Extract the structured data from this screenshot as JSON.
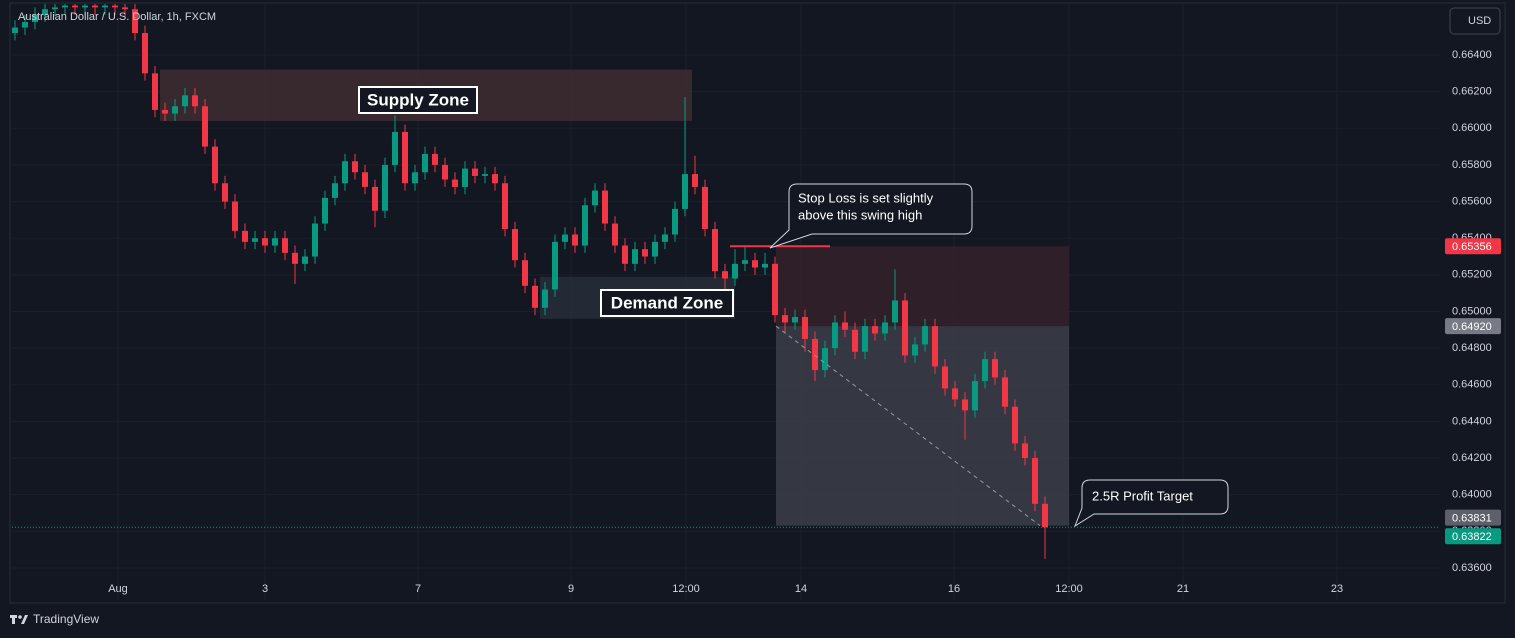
{
  "chart_data": {
    "type": "candlestick",
    "title": "Australian Dollar / U.S. Dollar, 1h, FXCM",
    "currency": "USD",
    "brand": "TradingView",
    "up_color": "#089981",
    "down_color": "#f23645",
    "grid": true,
    "open": [
      0.6652,
      0.6655,
      0.6658,
      0.6662,
      0.6665,
      0.6666,
      0.6667,
      0.6666,
      0.6667,
      0.6666,
      0.6667,
      0.6666,
      0.6665,
      0.6652,
      0.663,
      0.661,
      0.6608,
      0.6612,
      0.6618,
      0.6612,
      0.659,
      0.657,
      0.656,
      0.6544,
      0.6538,
      0.654,
      0.6536,
      0.654,
      0.6532,
      0.6526,
      0.653,
      0.6548,
      0.6562,
      0.657,
      0.6582,
      0.6576,
      0.6568,
      0.6555,
      0.658,
      0.6598,
      0.657,
      0.6576,
      0.6586,
      0.658,
      0.6572,
      0.6568,
      0.6578,
      0.6574,
      0.6575,
      0.657,
      0.6545,
      0.6528,
      0.6514,
      0.6502,
      0.6512,
      0.6538,
      0.6542,
      0.6536,
      0.6558,
      0.6566,
      0.6548,
      0.6536,
      0.6526,
      0.6534,
      0.653,
      0.6538,
      0.6542,
      0.6556,
      0.6575,
      0.6568,
      0.6545,
      0.6522,
      0.6518,
      0.6526,
      0.6528,
      0.6524,
      0.6526,
      0.6498,
      0.6494,
      0.6497,
      0.6485,
      0.6468,
      0.648,
      0.6494,
      0.649,
      0.6478,
      0.6492,
      0.6488,
      0.6494,
      0.6506,
      0.6476,
      0.6482,
      0.6492,
      0.647,
      0.6458,
      0.6452,
      0.6446,
      0.6462,
      0.6474,
      0.6464,
      0.6448,
      0.6428,
      0.642,
      0.6395
    ],
    "high": [
      0.6659,
      0.6662,
      0.6666,
      0.6669,
      0.667,
      0.6671,
      0.6671,
      0.6671,
      0.6671,
      0.6671,
      0.6671,
      0.667,
      0.6669,
      0.6656,
      0.6634,
      0.6614,
      0.6616,
      0.6622,
      0.6622,
      0.6616,
      0.6594,
      0.6574,
      0.6564,
      0.6548,
      0.6544,
      0.6544,
      0.6544,
      0.6544,
      0.6536,
      0.6534,
      0.6552,
      0.6566,
      0.6574,
      0.6586,
      0.6586,
      0.658,
      0.6572,
      0.6584,
      0.6607,
      0.6602,
      0.658,
      0.659,
      0.659,
      0.6584,
      0.6576,
      0.6582,
      0.6582,
      0.6579,
      0.6579,
      0.6574,
      0.6549,
      0.6532,
      0.6518,
      0.6516,
      0.6542,
      0.6546,
      0.6546,
      0.6562,
      0.657,
      0.657,
      0.6552,
      0.654,
      0.6538,
      0.6538,
      0.6542,
      0.6546,
      0.656,
      0.6617,
      0.6585,
      0.6572,
      0.6549,
      0.6526,
      0.6534,
      0.6535,
      0.6532,
      0.6532,
      0.653,
      0.6502,
      0.6501,
      0.6501,
      0.6489,
      0.6484,
      0.6498,
      0.65,
      0.6494,
      0.6496,
      0.6496,
      0.6498,
      0.6523,
      0.651,
      0.6486,
      0.6496,
      0.6496,
      0.6474,
      0.6462,
      0.6456,
      0.6466,
      0.6478,
      0.6478,
      0.6468,
      0.6452,
      0.6432,
      0.6424,
      0.6399
    ],
    "low": [
      0.6648,
      0.6651,
      0.6654,
      0.6658,
      0.6661,
      0.6662,
      0.6662,
      0.6662,
      0.6662,
      0.6662,
      0.6662,
      0.6661,
      0.6648,
      0.6626,
      0.6606,
      0.6604,
      0.6604,
      0.6608,
      0.6608,
      0.6586,
      0.6566,
      0.6556,
      0.654,
      0.6534,
      0.6534,
      0.6532,
      0.6532,
      0.6528,
      0.6515,
      0.6522,
      0.6526,
      0.6544,
      0.6558,
      0.6566,
      0.6572,
      0.6564,
      0.6546,
      0.6551,
      0.6576,
      0.6566,
      0.6566,
      0.6572,
      0.6576,
      0.6568,
      0.6564,
      0.6564,
      0.657,
      0.657,
      0.6566,
      0.6541,
      0.6524,
      0.651,
      0.6498,
      0.6498,
      0.6508,
      0.6534,
      0.6532,
      0.6532,
      0.6554,
      0.6544,
      0.6532,
      0.6522,
      0.6522,
      0.6526,
      0.6526,
      0.6534,
      0.6538,
      0.6552,
      0.6564,
      0.6541,
      0.6518,
      0.6512,
      0.6514,
      0.6522,
      0.652,
      0.652,
      0.6494,
      0.6488,
      0.649,
      0.6478,
      0.6462,
      0.6464,
      0.6476,
      0.6486,
      0.6474,
      0.6474,
      0.6484,
      0.6484,
      0.649,
      0.6472,
      0.6472,
      0.6478,
      0.6466,
      0.6454,
      0.6448,
      0.643,
      0.6442,
      0.6458,
      0.646,
      0.6444,
      0.6424,
      0.6416,
      0.6391,
      0.6365
    ],
    "close": [
      0.6655,
      0.6658,
      0.6662,
      0.6665,
      0.6666,
      0.6667,
      0.6666,
      0.6667,
      0.6666,
      0.6667,
      0.6666,
      0.6665,
      0.6652,
      0.663,
      0.661,
      0.6608,
      0.6612,
      0.6618,
      0.6612,
      0.659,
      0.657,
      0.656,
      0.6544,
      0.6538,
      0.654,
      0.6536,
      0.654,
      0.6532,
      0.6526,
      0.653,
      0.6548,
      0.6562,
      0.657,
      0.6582,
      0.6576,
      0.6568,
      0.6555,
      0.658,
      0.6598,
      0.657,
      0.6576,
      0.6586,
      0.658,
      0.6572,
      0.6568,
      0.6578,
      0.6574,
      0.6575,
      0.657,
      0.6545,
      0.6528,
      0.6514,
      0.6502,
      0.6512,
      0.6538,
      0.6542,
      0.6536,
      0.6558,
      0.6566,
      0.6548,
      0.6536,
      0.6526,
      0.6534,
      0.653,
      0.6538,
      0.6542,
      0.6556,
      0.6575,
      0.6568,
      0.6545,
      0.6522,
      0.6518,
      0.6526,
      0.6528,
      0.6524,
      0.6526,
      0.6498,
      0.6494,
      0.6497,
      0.6485,
      0.6468,
      0.648,
      0.6494,
      0.649,
      0.6478,
      0.6492,
      0.6488,
      0.6494,
      0.6506,
      0.6476,
      0.6482,
      0.6492,
      0.647,
      0.6458,
      0.6452,
      0.6446,
      0.6462,
      0.6474,
      0.6464,
      0.6448,
      0.6428,
      0.642,
      0.6395,
      0.63822
    ],
    "xlim": [
      -0.3,
      142.5
    ],
    "xticks": [
      {
        "value": 10.3,
        "label": "Aug"
      },
      {
        "value": 25,
        "label": "3"
      },
      {
        "value": 40.3,
        "label": "7"
      },
      {
        "value": 55.6,
        "label": "9"
      },
      {
        "value": 67.1,
        "label": "12:00"
      },
      {
        "value": 78.6,
        "label": "14"
      },
      {
        "value": 93.9,
        "label": "16"
      },
      {
        "value": 105.4,
        "label": "12:00"
      },
      {
        "value": 116.8,
        "label": "21"
      },
      {
        "value": 132.2,
        "label": "23"
      }
    ],
    "ylim": [
      0.63425,
      0.66673
    ],
    "yticks": [
      {
        "value": 0.636,
        "label": "0.63600"
      },
      {
        "value": 0.638,
        "label": "0.63800"
      },
      {
        "value": 0.64,
        "label": "0.64000"
      },
      {
        "value": 0.642,
        "label": "0.64200"
      },
      {
        "value": 0.644,
        "label": "0.64400"
      },
      {
        "value": 0.646,
        "label": "0.64600"
      },
      {
        "value": 0.648,
        "label": "0.64800"
      },
      {
        "value": 0.65,
        "label": "0.65000"
      },
      {
        "value": 0.652,
        "label": "0.65200"
      },
      {
        "value": 0.654,
        "label": "0.65400"
      },
      {
        "value": 0.656,
        "label": "0.65600"
      },
      {
        "value": 0.658,
        "label": "0.65800"
      },
      {
        "value": 0.66,
        "label": "0.66000"
      },
      {
        "value": 0.662,
        "label": "0.66200"
      },
      {
        "value": 0.664,
        "label": "0.66400"
      }
    ],
    "price_labels": [
      {
        "value": 0.65356,
        "label": "0.65356",
        "color": "#f23645"
      },
      {
        "value": 0.6492,
        "label": "0.64920",
        "color": "#787b86"
      },
      {
        "value": 0.63831,
        "label": "0.63831",
        "color": "#5d606b"
      },
      {
        "value": 0.63822,
        "label": "0.63822",
        "color": "#089981"
      }
    ],
    "zones": [
      {
        "name": "Supply Zone",
        "x": [
          14.5,
          67.7
        ],
        "y": [
          0.6604,
          0.6632
        ],
        "color": "#3d2b30"
      },
      {
        "name": "Demand Zone",
        "x": [
          52.5,
          72
        ],
        "y": [
          0.6496,
          0.6519
        ],
        "color": "#262b37"
      },
      {
        "x": [
          76.1,
          105.4
        ],
        "y": [
          0.6492,
          0.65356
        ],
        "color": "#33202a"
      },
      {
        "x": [
          76.1,
          105.4
        ],
        "y": [
          0.63831,
          0.6492
        ],
        "color": "#3a3c46"
      }
    ],
    "stop_line": {
      "x": [
        71.5,
        81.5
      ],
      "y": 0.65356,
      "color": "#f23645"
    },
    "path_line": {
      "x": [
        76.1,
        102.5
      ],
      "y": [
        0.6492,
        0.63831
      ]
    },
    "annotations": [
      {
        "lines": [
          "Stop Loss is set slightly",
          "above this swing high"
        ]
      },
      {
        "lines": [
          "2.5R Profit Target"
        ]
      }
    ]
  }
}
